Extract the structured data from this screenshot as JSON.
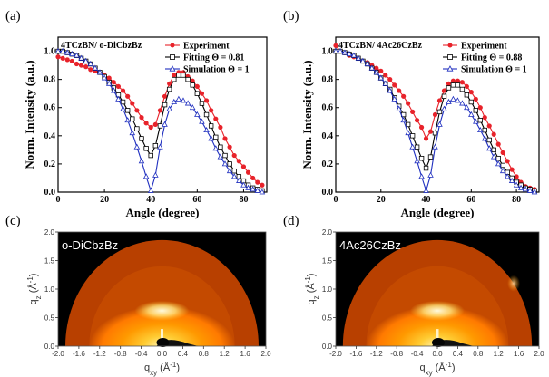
{
  "panel_labels": [
    "(a)",
    "(b)",
    "(c)",
    "(d)"
  ],
  "chart_data": [
    {
      "type": "line",
      "panel": "(a)",
      "inset_label": "4TCzBN/ o-DiCbzBz",
      "xlabel": "Angle (degree)",
      "ylabel": "Norm. Intensity (a.u.)",
      "xlim": [
        0,
        90
      ],
      "ylim": [
        0,
        1.1
      ],
      "xticks": [
        0,
        20,
        40,
        60,
        80
      ],
      "yticks": [
        0.0,
        0.2,
        0.4,
        0.6,
        0.8,
        1.0
      ],
      "legend_position": "top-right",
      "series": [
        {
          "name": "Experiment",
          "color": "#e8222a",
          "marker": "filled-circle",
          "x": [
            0,
            2,
            4,
            6,
            8,
            10,
            12,
            14,
            16,
            18,
            20,
            22,
            24,
            26,
            28,
            30,
            32,
            34,
            36,
            38,
            40,
            42,
            44,
            46,
            48,
            50,
            52,
            54,
            56,
            58,
            60,
            62,
            64,
            66,
            68,
            70,
            72,
            74,
            76,
            78,
            80,
            82,
            84,
            86,
            88
          ],
          "y": [
            0.96,
            0.95,
            0.94,
            0.93,
            0.91,
            0.9,
            0.89,
            0.87,
            0.86,
            0.85,
            0.83,
            0.81,
            0.78,
            0.75,
            0.72,
            0.68,
            0.63,
            0.58,
            0.53,
            0.49,
            0.46,
            0.48,
            0.58,
            0.68,
            0.77,
            0.83,
            0.85,
            0.85,
            0.82,
            0.79,
            0.75,
            0.7,
            0.65,
            0.58,
            0.52,
            0.46,
            0.38,
            0.32,
            0.26,
            0.22,
            0.18,
            0.14,
            0.1,
            0.07,
            0.05
          ]
        },
        {
          "name": "Fitting Θ = 0.81",
          "color": "#000000",
          "marker": "open-square",
          "x": [
            0,
            2,
            4,
            6,
            8,
            10,
            12,
            14,
            16,
            18,
            20,
            22,
            24,
            26,
            28,
            30,
            32,
            34,
            36,
            38,
            40,
            42,
            44,
            46,
            48,
            50,
            52,
            54,
            56,
            58,
            60,
            62,
            64,
            66,
            68,
            70,
            72,
            74,
            76,
            78,
            80,
            82,
            84,
            86,
            88
          ],
          "y": [
            1.0,
            1.0,
            0.99,
            0.98,
            0.97,
            0.95,
            0.93,
            0.91,
            0.88,
            0.85,
            0.82,
            0.78,
            0.74,
            0.69,
            0.64,
            0.58,
            0.52,
            0.45,
            0.38,
            0.31,
            0.26,
            0.33,
            0.47,
            0.62,
            0.73,
            0.8,
            0.83,
            0.83,
            0.8,
            0.76,
            0.7,
            0.63,
            0.55,
            0.47,
            0.39,
            0.32,
            0.26,
            0.2,
            0.15,
            0.11,
            0.08,
            0.05,
            0.03,
            0.02,
            0.01
          ]
        },
        {
          "name": "Simulation Θ = 1",
          "color": "#1f2fbf",
          "marker": "open-triangle",
          "x": [
            0,
            2,
            4,
            6,
            8,
            10,
            12,
            14,
            16,
            18,
            20,
            22,
            24,
            26,
            28,
            30,
            32,
            34,
            36,
            38,
            40,
            42,
            44,
            46,
            48,
            50,
            52,
            54,
            56,
            58,
            60,
            62,
            64,
            66,
            68,
            70,
            72,
            74,
            76,
            78,
            80,
            82,
            84,
            86,
            88
          ],
          "y": [
            1.0,
            1.0,
            0.99,
            0.98,
            0.97,
            0.95,
            0.93,
            0.91,
            0.88,
            0.85,
            0.81,
            0.77,
            0.72,
            0.66,
            0.59,
            0.51,
            0.42,
            0.32,
            0.22,
            0.11,
            0.01,
            0.12,
            0.32,
            0.48,
            0.59,
            0.64,
            0.66,
            0.65,
            0.63,
            0.6,
            0.55,
            0.5,
            0.44,
            0.38,
            0.31,
            0.25,
            0.2,
            0.15,
            0.11,
            0.08,
            0.05,
            0.03,
            0.02,
            0.01,
            0.0
          ]
        }
      ]
    },
    {
      "type": "line",
      "panel": "(b)",
      "inset_label": "4TCzBN/ 4Ac26CzBz",
      "xlabel": "Angle (degree)",
      "ylabel": "Norm. Intensity (a.u.)",
      "xlim": [
        0,
        90
      ],
      "ylim": [
        0,
        1.1
      ],
      "xticks": [
        0,
        20,
        40,
        60,
        80
      ],
      "yticks": [
        0.0,
        0.2,
        0.4,
        0.6,
        0.8,
        1.0
      ],
      "legend_position": "top-right",
      "series": [
        {
          "name": "Experiment",
          "color": "#e8222a",
          "marker": "filled-circle",
          "x": [
            0,
            2,
            4,
            6,
            8,
            10,
            12,
            14,
            16,
            18,
            20,
            22,
            24,
            26,
            28,
            30,
            32,
            34,
            36,
            38,
            40,
            42,
            44,
            46,
            48,
            50,
            52,
            54,
            56,
            58,
            60,
            62,
            64,
            66,
            68,
            70,
            72,
            74,
            76,
            78,
            80,
            82,
            84,
            86,
            88
          ],
          "y": [
            1.04,
            1.0,
            0.99,
            0.97,
            0.96,
            0.95,
            0.93,
            0.92,
            0.9,
            0.88,
            0.86,
            0.83,
            0.8,
            0.76,
            0.72,
            0.68,
            0.63,
            0.57,
            0.51,
            0.46,
            0.38,
            0.43,
            0.55,
            0.65,
            0.72,
            0.77,
            0.79,
            0.79,
            0.78,
            0.75,
            0.71,
            0.66,
            0.6,
            0.53,
            0.47,
            0.41,
            0.34,
            0.28,
            0.22,
            0.16,
            0.11,
            0.07,
            0.04,
            0.03,
            0.02
          ]
        },
        {
          "name": "Fitting Θ = 0.88",
          "color": "#000000",
          "marker": "open-square",
          "x": [
            0,
            2,
            4,
            6,
            8,
            10,
            12,
            14,
            16,
            18,
            20,
            22,
            24,
            26,
            28,
            30,
            32,
            34,
            36,
            38,
            40,
            42,
            44,
            46,
            48,
            50,
            52,
            54,
            56,
            58,
            60,
            62,
            64,
            66,
            68,
            70,
            72,
            74,
            76,
            78,
            80,
            82,
            84,
            86,
            88
          ],
          "y": [
            1.0,
            1.0,
            0.99,
            0.98,
            0.97,
            0.95,
            0.93,
            0.91,
            0.88,
            0.85,
            0.81,
            0.77,
            0.73,
            0.67,
            0.61,
            0.55,
            0.48,
            0.4,
            0.32,
            0.24,
            0.17,
            0.25,
            0.42,
            0.57,
            0.68,
            0.74,
            0.76,
            0.76,
            0.73,
            0.69,
            0.64,
            0.58,
            0.51,
            0.44,
            0.37,
            0.3,
            0.24,
            0.19,
            0.14,
            0.1,
            0.07,
            0.05,
            0.03,
            0.02,
            0.01
          ]
        },
        {
          "name": "Simulation Θ = 1",
          "color": "#1f2fbf",
          "marker": "open-triangle",
          "x": [
            0,
            2,
            4,
            6,
            8,
            10,
            12,
            14,
            16,
            18,
            20,
            22,
            24,
            26,
            28,
            30,
            32,
            34,
            36,
            38,
            40,
            42,
            44,
            46,
            48,
            50,
            52,
            54,
            56,
            58,
            60,
            62,
            64,
            66,
            68,
            70,
            72,
            74,
            76,
            78,
            80,
            82,
            84,
            86,
            88
          ],
          "y": [
            1.0,
            1.0,
            0.99,
            0.98,
            0.97,
            0.95,
            0.93,
            0.91,
            0.88,
            0.85,
            0.81,
            0.77,
            0.72,
            0.66,
            0.59,
            0.51,
            0.42,
            0.32,
            0.22,
            0.11,
            0.01,
            0.12,
            0.32,
            0.48,
            0.59,
            0.64,
            0.66,
            0.65,
            0.63,
            0.6,
            0.55,
            0.5,
            0.44,
            0.38,
            0.31,
            0.25,
            0.2,
            0.15,
            0.11,
            0.08,
            0.05,
            0.03,
            0.02,
            0.01,
            0.0
          ]
        }
      ]
    },
    {
      "type": "heatmap",
      "panel": "(c)",
      "image_label": "o-DiCbzBz",
      "xlabel": "qxy (Å⁻¹)",
      "ylabel": "qz (Å⁻¹)",
      "xlim": [
        -2.0,
        2.0
      ],
      "ylim": [
        0.0,
        2.0
      ],
      "xticks": [
        "-2.0",
        "-1.6",
        "-1.2",
        "-0.8",
        "-0.4",
        "0.0",
        "0.4",
        "0.8",
        "1.2",
        "1.6",
        "2.0"
      ],
      "yticks": [
        "0.0",
        "0.5",
        "1.0",
        "1.5",
        "2.0"
      ],
      "features": [
        {
          "q": 1.4,
          "description": "outer ring"
        },
        {
          "qxy": 0.0,
          "qz": 0.62,
          "description": "bright spot"
        }
      ]
    },
    {
      "type": "heatmap",
      "panel": "(d)",
      "image_label": "4Ac26CzBz",
      "xlabel": "qxy (Å⁻¹)",
      "ylabel": "qz (Å⁻¹)",
      "xlim": [
        -2.0,
        2.0
      ],
      "ylim": [
        0.0,
        2.0
      ],
      "xticks": [
        "-2.0",
        "-1.6",
        "-1.2",
        "-0.8",
        "-0.4",
        "0.0",
        "0.4",
        "0.8",
        "1.2",
        "1.6",
        "2.0"
      ],
      "yticks": [
        "0.0",
        "0.5",
        "1.0",
        "1.5",
        "2.0"
      ],
      "features": [
        {
          "q": 1.4,
          "description": "outer ring"
        },
        {
          "qxy": 0.0,
          "qz": 0.62,
          "description": "bright spot"
        },
        {
          "qxy": 1.5,
          "qz": 1.1,
          "description": "faint side spot"
        }
      ]
    }
  ]
}
